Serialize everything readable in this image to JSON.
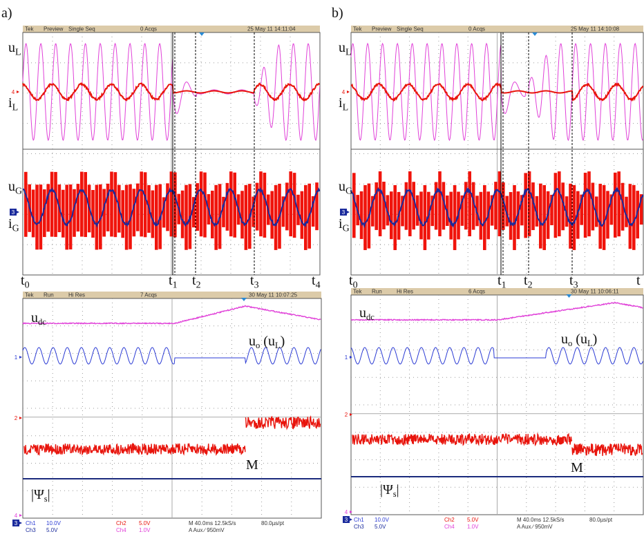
{
  "panels": [
    {
      "label": "a)",
      "top_scope": {
        "header": [
          "Tek",
          "Preview",
          "Single Seq",
          "0 Acqs",
          "25 May 11 14:11:04"
        ],
        "channel_markers": [
          "4",
          "3"
        ],
        "signal_labels": [
          [
            "u",
            "L"
          ],
          [
            "i",
            "L"
          ],
          [
            "u",
            "G"
          ],
          [
            "i",
            "G"
          ]
        ],
        "time_labels": [
          [
            "t",
            "0"
          ],
          [
            "t",
            "1"
          ],
          [
            "t",
            "2"
          ],
          [
            "t",
            "3"
          ],
          [
            "t",
            "4"
          ]
        ]
      },
      "bottom_scope": {
        "header": [
          "Tek",
          "Run",
          "Hi Res",
          "7 Acqs",
          "30 May 11 10:07:25"
        ],
        "channel_markers": [
          "1",
          "2",
          "4",
          "3"
        ],
        "signal_labels": [
          [
            "u",
            "dc"
          ],
          [
            "u",
            "o",
            " (u",
            "L",
            ")"
          ],
          [
            "M"
          ],
          [
            "|Ψ",
            "s",
            "|"
          ]
        ],
        "footer": [
          [
            "Ch1",
            "10.0V",
            "Ch2",
            "5.0V",
            "M 40.0ms 12.5kS/s",
            "80.0µs/pt"
          ],
          [
            "Ch3",
            "5.0V",
            "Ch4",
            "1.0V",
            "A  Aux  ∕  950mV"
          ]
        ]
      }
    },
    {
      "label": "b)",
      "top_scope": {
        "header": [
          "Tek",
          "Preview",
          "Single Seq",
          "0 Acqs",
          "25 May 11 14:10:08"
        ],
        "channel_markers": [
          "4",
          "3"
        ],
        "signal_labels": [
          [
            "u",
            "L"
          ],
          [
            "i",
            "L"
          ],
          [
            "u",
            "G"
          ],
          [
            "i",
            "G"
          ]
        ],
        "time_labels": [
          [
            "t",
            "0"
          ],
          [
            "t",
            "1"
          ],
          [
            "t",
            "2"
          ],
          [
            "t",
            "3"
          ],
          [
            "t"
          ]
        ]
      },
      "bottom_scope": {
        "header": [
          "Tek",
          "Run",
          "Hi Res",
          "6 Acqs",
          "30 May 11 10:06:11"
        ],
        "channel_markers": [
          "1",
          "2",
          "4",
          "3"
        ],
        "signal_labels": [
          [
            "u",
            "dc"
          ],
          [
            "u",
            "o",
            " (u",
            "L",
            ")"
          ],
          [
            "M"
          ],
          [
            "|Ψ",
            "s",
            "|"
          ]
        ],
        "footer": [
          [
            "Ch1",
            "10.0V",
            "Ch2",
            "5.0V",
            "M 40.0ms 12.5kS/s",
            "80.0µs/pt"
          ],
          [
            "Ch3",
            "5.0V",
            "Ch4",
            "1.0V",
            "A  Aux  ∕  950mV"
          ]
        ]
      }
    }
  ]
}
